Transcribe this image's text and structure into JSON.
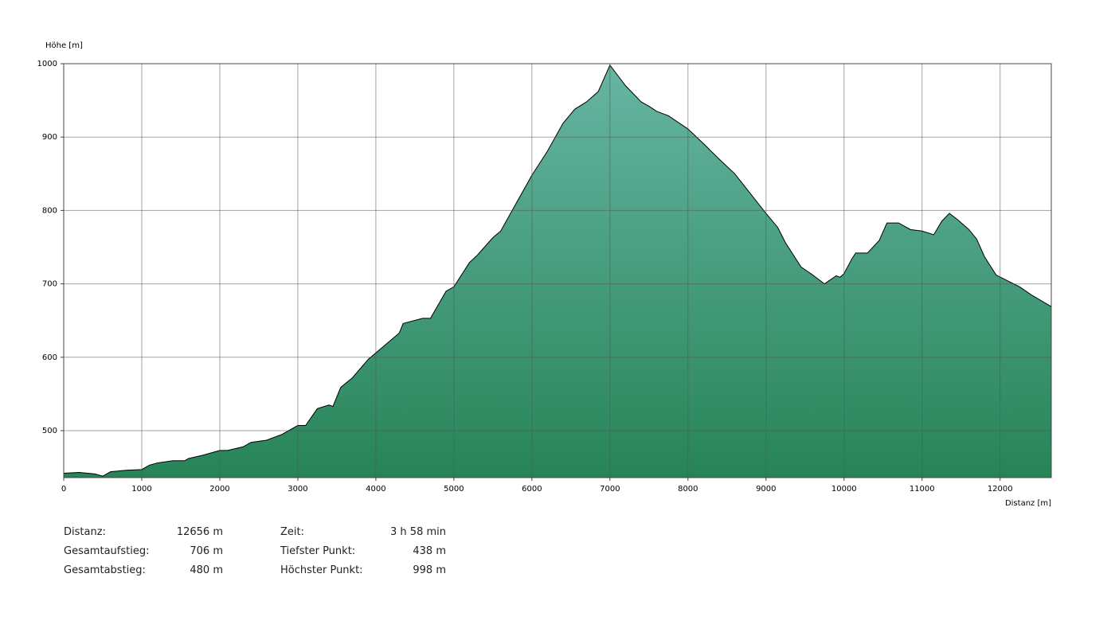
{
  "chart_data": {
    "type": "area",
    "ylabel": "Höhe [m]",
    "xlabel": "Distanz [m]",
    "x": [
      0,
      200,
      400,
      500,
      600,
      800,
      1000,
      1100,
      1200,
      1400,
      1550,
      1600,
      1800,
      2000,
      2100,
      2300,
      2400,
      2600,
      2800,
      3000,
      3100,
      3250,
      3400,
      3450,
      3550,
      3700,
      3900,
      4100,
      4300,
      4350,
      4600,
      4700,
      4900,
      5000,
      5200,
      5300,
      5500,
      5600,
      5800,
      6000,
      6200,
      6400,
      6550,
      6700,
      6850,
      7000,
      7100,
      7200,
      7400,
      7500,
      7600,
      7750,
      8000,
      8200,
      8400,
      8600,
      8800,
      9000,
      9150,
      9250,
      9450,
      9600,
      9750,
      9900,
      9950,
      10000,
      10100,
      10150,
      10300,
      10450,
      10550,
      10700,
      10850,
      11000,
      11150,
      11250,
      11350,
      11450,
      11600,
      11700,
      11800,
      11950,
      12100,
      12250,
      12400,
      12656
    ],
    "values": [
      442,
      443,
      441,
      438,
      444,
      446,
      447,
      453,
      456,
      459,
      459,
      462,
      467,
      473,
      473,
      478,
      484,
      487,
      495,
      507,
      507,
      530,
      535,
      533,
      559,
      572,
      597,
      615,
      633,
      646,
      653,
      653,
      690,
      696,
      729,
      739,
      763,
      772,
      810,
      848,
      881,
      919,
      938,
      948,
      962,
      998,
      984,
      970,
      948,
      942,
      935,
      929,
      911,
      891,
      870,
      850,
      823,
      796,
      777,
      756,
      723,
      712,
      700,
      711,
      709,
      714,
      734,
      742,
      742,
      759,
      783,
      783,
      774,
      772,
      767,
      785,
      796,
      788,
      774,
      761,
      737,
      712,
      704,
      696,
      685,
      669
    ],
    "color": "#000000",
    "xlim": [
      0,
      12656
    ],
    "ylim": [
      436,
      1000
    ],
    "xticks": [
      0,
      1000,
      2000,
      3000,
      4000,
      5000,
      6000,
      7000,
      8000,
      9000,
      10000,
      11000,
      12000
    ],
    "yticks": [
      500,
      600,
      700,
      800,
      900,
      1000
    ],
    "grid": true
  },
  "stats": [
    [
      "Distanz:",
      "12656 m",
      "Zeit:",
      "3 h 58 min"
    ],
    [
      "Gesamtaufstieg:",
      "706 m",
      "Tiefster Punkt:",
      "438 m"
    ],
    [
      "Gesamtabstieg:",
      "480 m",
      "Höchster Punkt:",
      "998 m"
    ]
  ]
}
